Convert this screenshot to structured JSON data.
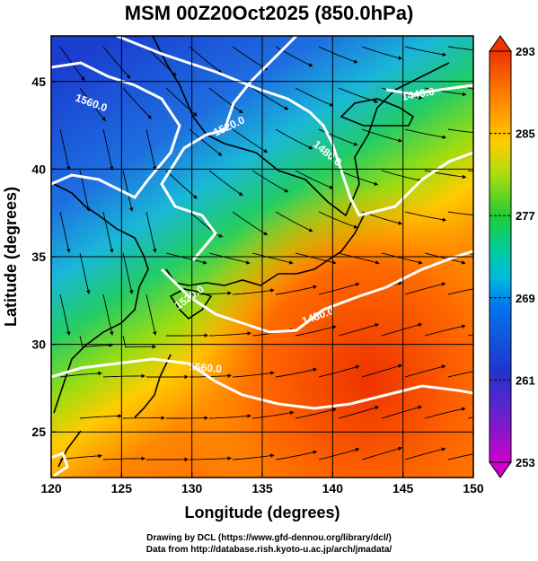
{
  "title": "MSM 00Z20Oct2025 (850.0hPa)",
  "axes": {
    "xlabel": "Longitude (degrees)",
    "ylabel": "Latitude  (degrees)",
    "xticks": [
      120,
      125,
      130,
      135,
      140,
      145,
      150
    ],
    "yticks": [
      25,
      30,
      35,
      40,
      45
    ],
    "xlim": [
      120,
      150
    ],
    "ylim": [
      22.4,
      47.6
    ]
  },
  "colorbar": {
    "ticks": [
      293,
      285,
      277,
      269,
      261,
      253
    ],
    "range": [
      253,
      293
    ],
    "colors": [
      "#cc00cc",
      "#2233cc",
      "#00aaff",
      "#00cc99",
      "#44cc22",
      "#aadd11",
      "#ffcc00",
      "#ff8800",
      "#ee3300"
    ]
  },
  "contours": {
    "labels": [
      "1560.0",
      "1520.0",
      "1480.0",
      "1440.0",
      "1520.0",
      "1560.0",
      "1480.0"
    ]
  },
  "footer": {
    "line1": "Drawing by DCL (https://www.gfd-dennou.org/library/dcl/)",
    "line2": "Data from http://database.rish.kyoto-u.ac.jp/arch/jmadata/"
  }
}
